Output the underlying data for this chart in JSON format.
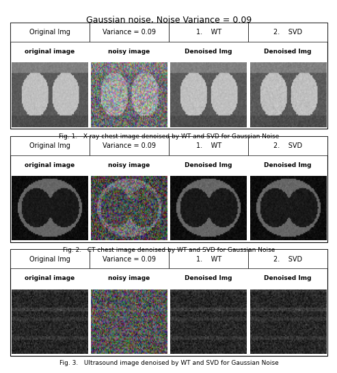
{
  "title": "Gaussian noise, Noise Variance = 0.09",
  "title_fontsize": 9,
  "background_color": "#ffffff",
  "col_headers": [
    "Original Img",
    "Variance = 0.09",
    "1.    WT",
    "2.    SVD"
  ],
  "col_header_fontsize": 7,
  "row_labels": [
    "original image",
    "noisy image",
    "Denoised Img",
    "Denoised Img"
  ],
  "row_label_fontsize": 7,
  "row_label_bold": [
    true,
    true,
    true,
    true
  ],
  "fig_captions": [
    "Fig. 1.   X-ray chest image denoised by WT and SVD for Gaussian Noise",
    "Fig. 2.   CT chest image denoised by WT and SVD for Gaussian Noise",
    "Fig. 3.   Ultrasound image denoised by WT and SVD for Gaussian Noise"
  ],
  "caption_fontsize": 6.5,
  "n_rows": 3,
  "n_cols": 4,
  "cell_colors": {
    "xray_orig": "#888888",
    "xray_noisy": "#aaaaaa",
    "xray_wt": "#999999",
    "xray_svd": "#aaaaaa",
    "ct_orig": "#555555",
    "ct_noisy": "#777777",
    "ct_wt": "#666666",
    "ct_svd": "#555555",
    "us_orig": "#333333",
    "us_noisy": "#666666",
    "us_wt": "#555555",
    "us_svd": "#444444"
  },
  "image_row_colors": [
    [
      "#a0a0a0",
      "#b8a090",
      "#909090",
      "#a0a0a0"
    ],
    [
      "#606060",
      "#807060",
      "#686868",
      "#585858"
    ],
    [
      "#303030",
      "#504030",
      "#404040",
      "#383838"
    ]
  ],
  "grid_color": "#000000",
  "text_color": "#000000",
  "label_color": "#111111"
}
